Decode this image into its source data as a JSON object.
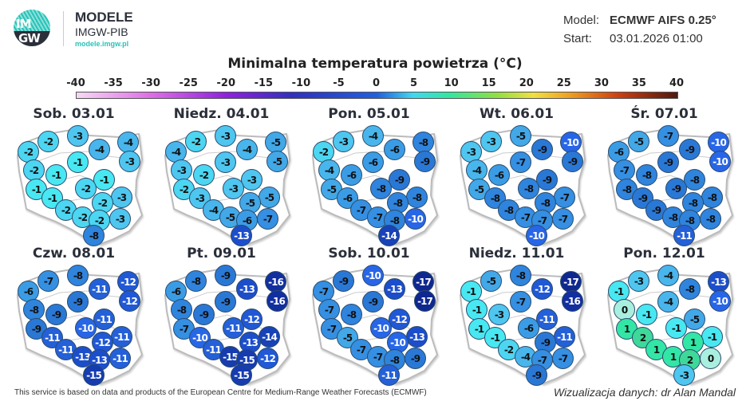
{
  "header": {
    "logo_text": "IMGW",
    "brand": "MODELE",
    "brand_sub": "IMGW-PIB",
    "brand_url": "modele.imgw.pl",
    "model_label": "Model:",
    "model_value": "ECMWF AIFS 0.25°",
    "start_label": "Start:",
    "start_value": "03.01.2026 01:00"
  },
  "title": "Minimalna temperatura powietrza (°C)",
  "colorbar": {
    "ticks": [
      "-40",
      "-35",
      "-30",
      "-25",
      "-20",
      "-15",
      "-10",
      "-5",
      "0",
      "5",
      "10",
      "15",
      "20",
      "25",
      "30",
      "35",
      "40"
    ],
    "range": [
      -40,
      40
    ]
  },
  "days": [
    {
      "label": "Sob. 03.01",
      "values": [
        -2,
        -3,
        -4,
        -4,
        -2,
        -3,
        -1,
        -2,
        -1,
        -1,
        -1,
        -2,
        -3,
        -2,
        -1,
        -2,
        -2,
        -2,
        -3,
        -8
      ]
    },
    {
      "label": "Niedz. 04.01",
      "values": [
        -2,
        -3,
        -4,
        -5,
        -4,
        -5,
        -3,
        -3,
        -2,
        -3,
        -2,
        -3,
        -5,
        -5,
        -3,
        -4,
        -5,
        -6,
        -7,
        -13
      ]
    },
    {
      "label": "Pon. 05.01",
      "values": [
        -3,
        -4,
        -6,
        -8,
        -2,
        -9,
        -6,
        -4,
        -6,
        -9,
        -5,
        -8,
        -8,
        -8,
        -6,
        -7,
        -7,
        -8,
        -10,
        -14
      ]
    },
    {
      "label": "Wt. 06.01",
      "values": [
        -3,
        -5,
        -9,
        -10,
        -3,
        -9,
        -7,
        -4,
        -6,
        -9,
        -5,
        -8,
        -7,
        -8,
        -8,
        -8,
        -7,
        -7,
        -7,
        -10
      ]
    },
    {
      "label": "Śr. 07.01",
      "values": [
        -5,
        -7,
        -9,
        -10,
        -6,
        -10,
        -9,
        -7,
        -8,
        -8,
        -8,
        -9,
        -8,
        -8,
        -9,
        -9,
        -8,
        -8,
        -8,
        -11
      ]
    },
    {
      "label": "Czw. 08.01",
      "values": [
        -7,
        -8,
        -11,
        -12,
        -6,
        -12,
        -9,
        -8,
        -9,
        -11,
        -9,
        -10,
        -11,
        -12,
        -11,
        -11,
        -13,
        -13,
        -11,
        -15
      ]
    },
    {
      "label": "Pt. 09.01",
      "values": [
        -8,
        -9,
        -13,
        -16,
        -6,
        -16,
        -9,
        -8,
        -9,
        -12,
        -7,
        -11,
        -14,
        -13,
        -10,
        -11,
        -15,
        -15,
        -12,
        -15
      ]
    },
    {
      "label": "Sob. 10.01",
      "values": [
        -9,
        -10,
        -13,
        -17,
        -7,
        -17,
        -9,
        -7,
        -8,
        -12,
        -7,
        -10,
        -13,
        -10,
        -5,
        -7,
        -7,
        -8,
        -9,
        -11
      ]
    },
    {
      "label": "Niedz. 11.01",
      "values": [
        -5,
        -8,
        -12,
        -17,
        -1,
        -16,
        -7,
        -1,
        -3,
        -11,
        -1,
        -6,
        -11,
        -9,
        -1,
        -2,
        -4,
        -7,
        -7,
        -9
      ]
    },
    {
      "label": "Pon. 12.01",
      "values": [
        -3,
        -4,
        -8,
        -13,
        -1,
        -10,
        -4,
        0,
        -1,
        -5,
        1,
        -1,
        -1,
        1,
        2,
        1,
        1,
        2,
        0,
        -3
      ]
    }
  ],
  "footer": {
    "source": "This service is based on data and products of the European Centre for Medium-Range Weather Forecasts (ECMWF)",
    "credit": "Wizualizacja danych: dr Alan Mandal"
  }
}
